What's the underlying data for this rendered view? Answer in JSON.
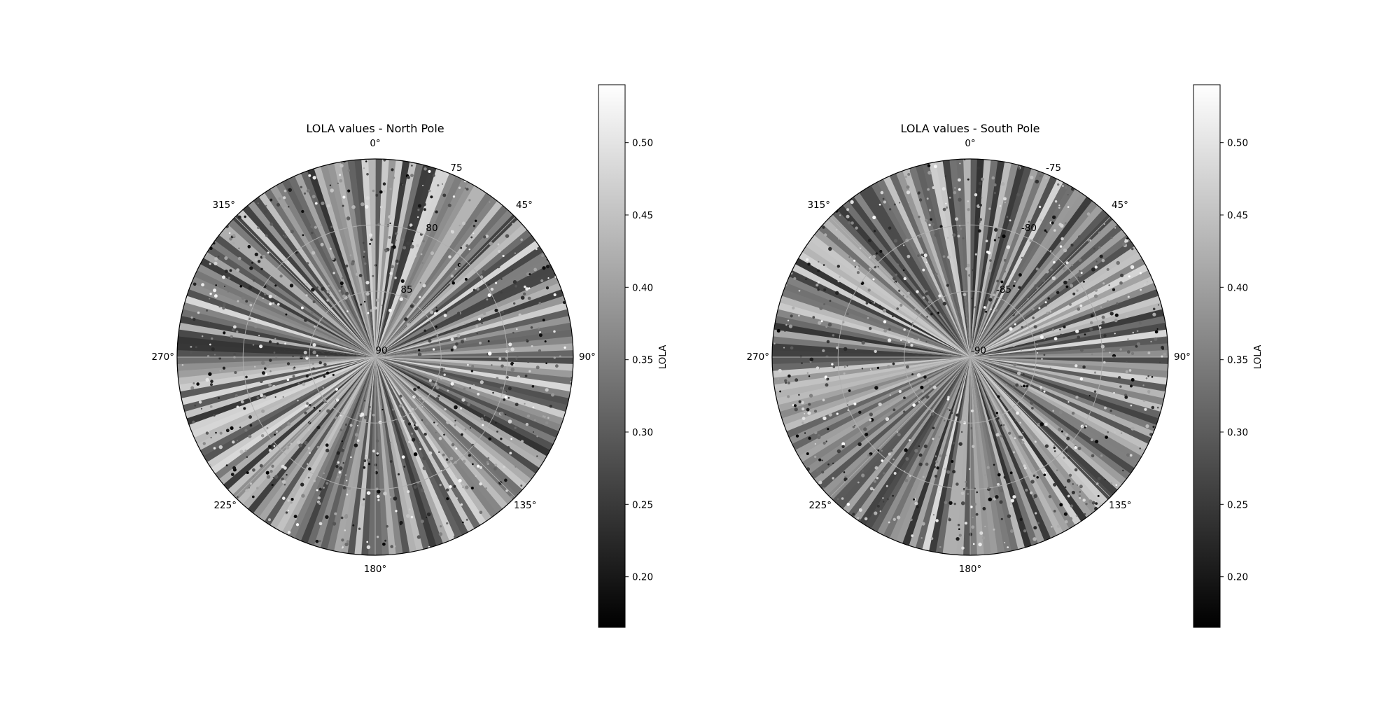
{
  "chart_data": [
    {
      "type": "heatmap",
      "subtype": "polar-scatter",
      "title": "LOLA values - North Pole",
      "theta_ticks": [
        "0°",
        "45°",
        "90°",
        "135°",
        "180°",
        "225°",
        "270°",
        "315°"
      ],
      "r_ticks": [
        "75",
        "80",
        "85",
        "90"
      ],
      "latitude_range": [
        75,
        90
      ],
      "colorbar": {
        "label": "LOLA",
        "range": [
          0.165,
          0.54
        ],
        "ticks": [
          "0.20",
          "0.25",
          "0.30",
          "0.35",
          "0.40",
          "0.45",
          "0.50"
        ],
        "colormap": "gray"
      },
      "value_range": [
        0.165,
        0.54
      ],
      "grid": true,
      "seed": 7
    },
    {
      "type": "heatmap",
      "subtype": "polar-scatter",
      "title": "LOLA values - South Pole",
      "theta_ticks": [
        "0°",
        "45°",
        "90°",
        "135°",
        "180°",
        "225°",
        "270°",
        "315°"
      ],
      "r_ticks": [
        "-75",
        "-80",
        "-85",
        "-90"
      ],
      "latitude_range": [
        -75,
        -90
      ],
      "colorbar": {
        "label": "LOLA",
        "range": [
          0.165,
          0.54
        ],
        "ticks": [
          "0.20",
          "0.25",
          "0.30",
          "0.35",
          "0.40",
          "0.45",
          "0.50"
        ],
        "colormap": "gray"
      },
      "value_range": [
        0.165,
        0.54
      ],
      "grid": true,
      "seed": 19
    }
  ]
}
